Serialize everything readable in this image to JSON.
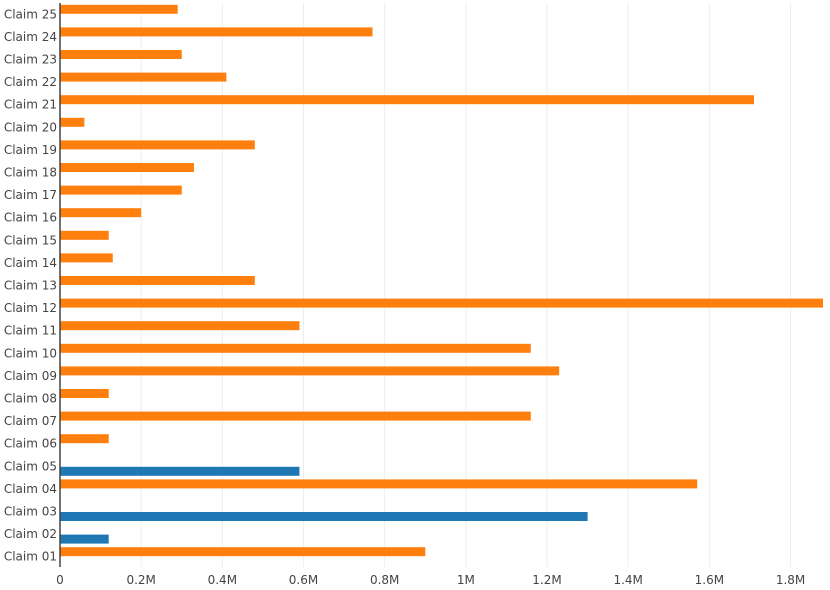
{
  "chart_data": {
    "type": "bar",
    "orientation": "horizontal",
    "title": "",
    "xlabel": "",
    "ylabel": "",
    "xlim": [
      0,
      1.88
    ],
    "x_unit_label": "M",
    "x_ticks": [
      0,
      0.2,
      0.4,
      0.6,
      0.8,
      1.0,
      1.2,
      1.4,
      1.6,
      1.8
    ],
    "x_tick_labels": [
      "0",
      "0.2M",
      "0.4M",
      "0.6M",
      "0.8M",
      "1M",
      "1.2M",
      "1.4M",
      "1.6M",
      "1.8M"
    ],
    "grid": true,
    "legend": "none",
    "categories": [
      "Claim 01",
      "Claim 02",
      "Claim 03",
      "Claim 04",
      "Claim 05",
      "Claim 06",
      "Claim 07",
      "Claim 08",
      "Claim 09",
      "Claim 10",
      "Claim 11",
      "Claim 12",
      "Claim 13",
      "Claim 14",
      "Claim 15",
      "Claim 16",
      "Claim 17",
      "Claim 18",
      "Claim 19",
      "Claim 20",
      "Claim 21",
      "Claim 22",
      "Claim 23",
      "Claim 24",
      "Claim 25"
    ],
    "series": [
      {
        "color": "#ff7f0e",
        "bar_offset": "upper",
        "values": [
          0.9,
          null,
          null,
          1.57,
          null,
          0.12,
          1.16,
          0.12,
          1.23,
          1.16,
          0.59,
          1.88,
          0.48,
          0.13,
          0.12,
          0.2,
          0.3,
          0.33,
          0.48,
          0.06,
          1.71,
          0.41,
          0.3,
          0.77,
          0.29
        ]
      },
      {
        "color": "#1f77b4",
        "bar_offset": "lower",
        "values": [
          null,
          0.12,
          1.3,
          null,
          0.59,
          null,
          null,
          null,
          null,
          null,
          null,
          null,
          null,
          null,
          null,
          null,
          null,
          null,
          null,
          null,
          null,
          null,
          null,
          null,
          null
        ]
      }
    ]
  }
}
